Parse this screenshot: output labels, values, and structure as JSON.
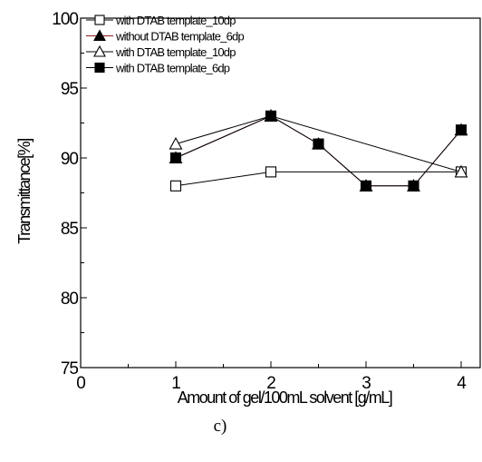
{
  "chart_data": {
    "type": "line",
    "xlabel": "Amount of gel/100mL solvent [g/mL]",
    "ylabel": "Transmittance[%]",
    "caption": "c)",
    "xlim": [
      0,
      4.2
    ],
    "ylim": [
      75,
      100
    ],
    "x_ticks": [
      0,
      1,
      2,
      3,
      4
    ],
    "y_ticks": [
      75,
      80,
      85,
      90,
      95,
      100
    ],
    "legend_position": "top-left",
    "series": [
      {
        "name": "with DTAB template_10dp",
        "marker": "square-open",
        "line_color": "#000000",
        "points": [
          [
            1,
            88
          ],
          [
            2,
            89
          ],
          [
            4,
            89
          ]
        ]
      },
      {
        "name": "without DTAB template_6dp",
        "marker": "triangle-filled",
        "line_color": "#8b1a1a",
        "points": [
          [
            1,
            90
          ],
          [
            2,
            93
          ],
          [
            2.5,
            91
          ],
          [
            3,
            88
          ],
          [
            3.5,
            88
          ],
          [
            4,
            92
          ]
        ]
      },
      {
        "name": "with DTAB template_10dp",
        "marker": "triangle-open",
        "line_color": "#000000",
        "points": [
          [
            1,
            91
          ],
          [
            2,
            93
          ],
          [
            4,
            89
          ]
        ]
      },
      {
        "name": "with DTAB template_6dp",
        "marker": "square-filled",
        "line_color": "#000000",
        "points": [
          [
            1,
            90
          ],
          [
            2,
            93
          ],
          [
            2.5,
            91
          ],
          [
            3,
            88
          ],
          [
            3.5,
            88
          ],
          [
            4,
            92
          ]
        ]
      }
    ]
  }
}
